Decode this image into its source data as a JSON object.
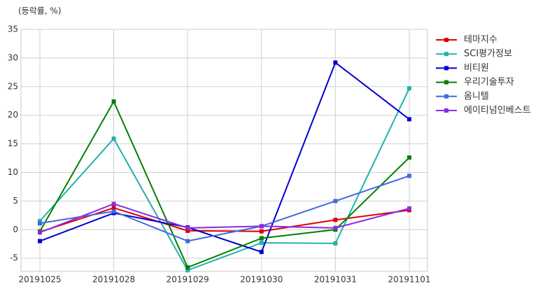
{
  "chart_data": {
    "type": "line",
    "ylabel": "(등락률, %)",
    "categories": [
      "20191025",
      "20191028",
      "20191029",
      "20191030",
      "20191031",
      "20191101"
    ],
    "series": [
      {
        "name": "테마지수",
        "color": "#e00000",
        "values": [
          -0.4,
          3.8,
          -0.2,
          -0.3,
          1.7,
          3.4
        ]
      },
      {
        "name": "SCI평가정보",
        "color": "#20b2aa",
        "values": [
          1.5,
          15.9,
          -7.1,
          -2.3,
          -2.4,
          24.7
        ]
      },
      {
        "name": "비티원",
        "color": "#0000cd",
        "values": [
          -2.0,
          2.9,
          0.4,
          -3.9,
          29.2,
          19.3
        ]
      },
      {
        "name": "우리기술투자",
        "color": "#008000",
        "values": [
          -0.3,
          22.4,
          -6.6,
          -1.5,
          0.0,
          12.6
        ]
      },
      {
        "name": "옴니텔",
        "color": "#4169e1",
        "values": [
          1.1,
          3.2,
          -2.0,
          0.6,
          5.0,
          9.4
        ]
      },
      {
        "name": "에이티넘인베스트",
        "color": "#8a2be2",
        "values": [
          -0.5,
          4.5,
          0.3,
          0.6,
          0.3,
          3.7
        ]
      }
    ],
    "ylim": [
      -7.3,
      35
    ],
    "yticks": [
      -5,
      0,
      5,
      10,
      15,
      20,
      25,
      30,
      35
    ],
    "grid": true
  }
}
